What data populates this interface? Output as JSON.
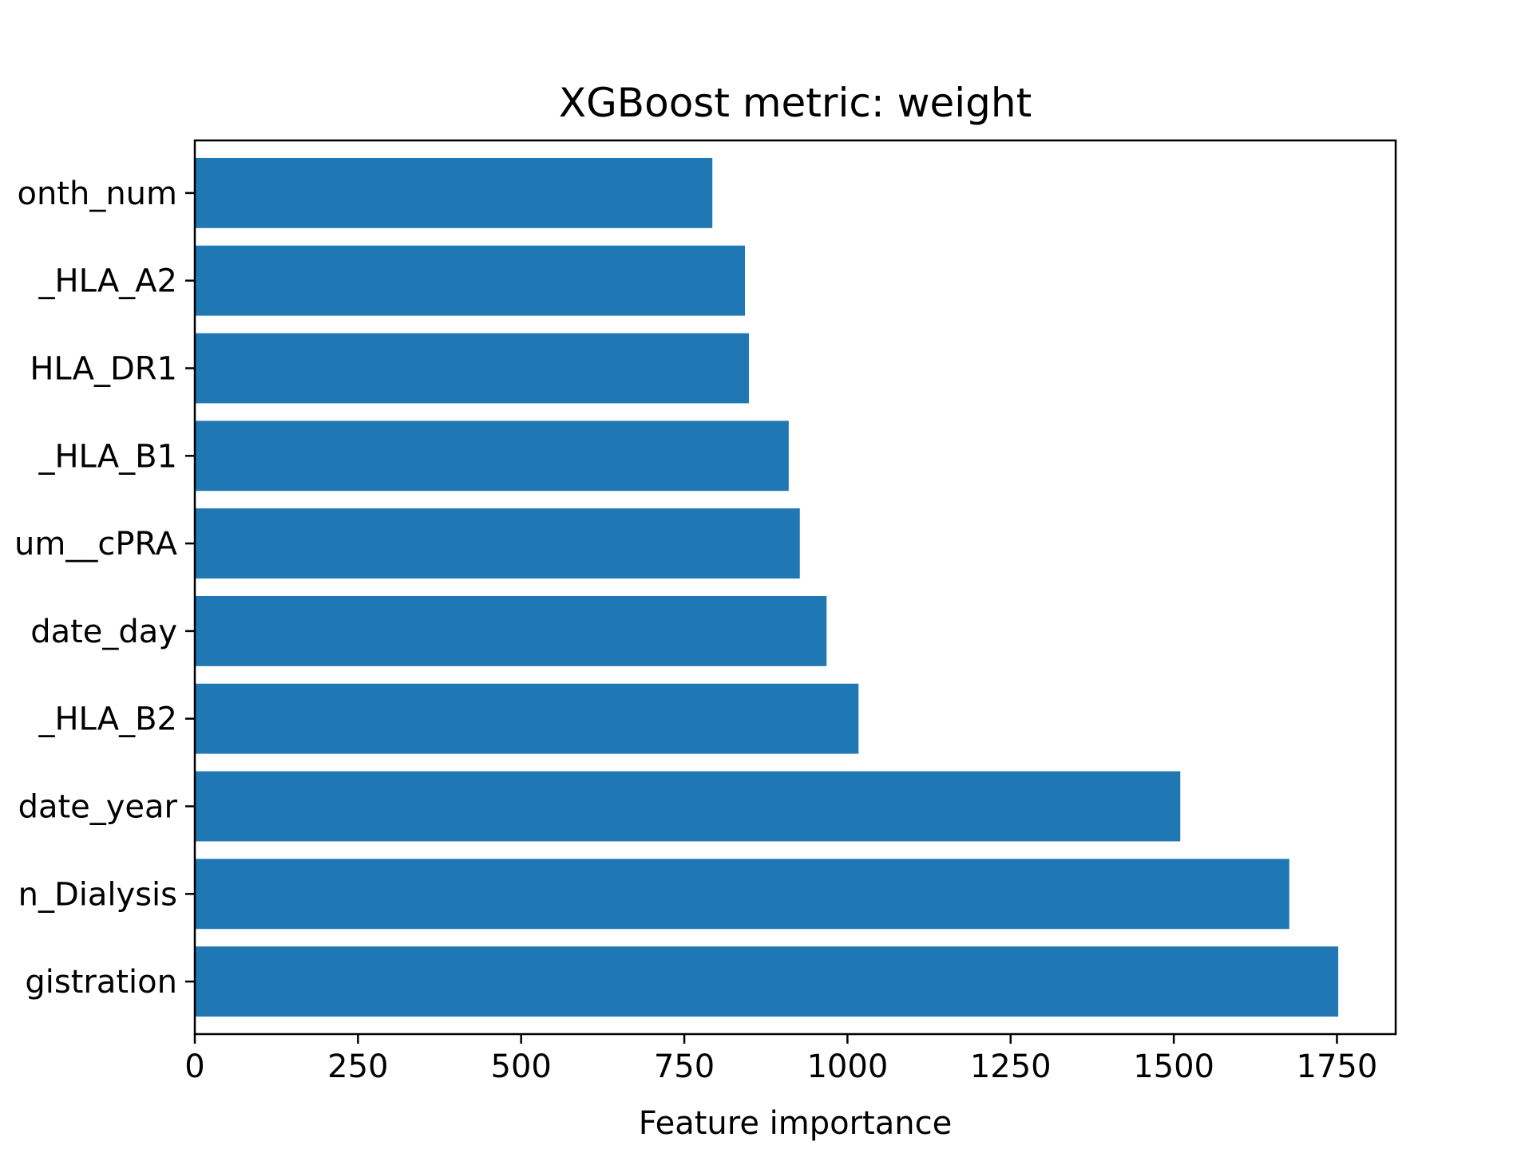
{
  "chart_data": {
    "type": "bar",
    "orientation": "horizontal",
    "title": "XGBoost metric: weight",
    "xlabel": "Feature importance",
    "ylabel": "",
    "categories": [
      "gistration",
      "n_Dialysis",
      "date_year",
      "_HLA_B2",
      "date_day",
      "um__cPRA",
      "_HLA_B1",
      "HLA_DR1",
      "_HLA_A2",
      "onth_num"
    ],
    "values": [
      1752,
      1677,
      1510,
      1017,
      968,
      927,
      910,
      849,
      843,
      793
    ],
    "xlim": [
      0,
      1840
    ],
    "xticks": [
      0,
      250,
      500,
      750,
      1000,
      1250,
      1500,
      1750
    ],
    "xtick_labels": [
      "0",
      "250",
      "500",
      "750",
      "1000",
      "1250",
      "1500",
      "1750"
    ],
    "bar_color": "#1f77b4",
    "grid": false,
    "legend": "none"
  }
}
